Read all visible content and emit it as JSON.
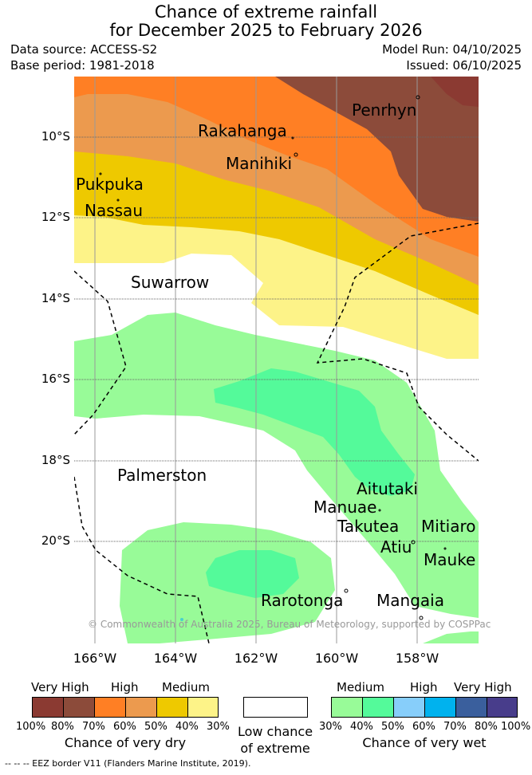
{
  "title_line1": "Chance of extreme rainfall",
  "title_line2": "for December 2025 to February 2026",
  "data_source": "Data source: ACCESS-S2",
  "base_period": "Base period: 1981-2018",
  "model_run": "Model Run: 04/10/2025",
  "issued": "Issued: 06/10/2025",
  "map": {
    "latitude_labels": [
      "10°S",
      "12°S",
      "14°S",
      "16°S",
      "18°S",
      "20°S"
    ],
    "longitude_labels": [
      "166°W",
      "164°W",
      "162°W",
      "160°W",
      "158°W"
    ],
    "places": [
      "Penrhyn",
      "Rakahanga",
      "Manihiki",
      "Pukpuka",
      "Nassau",
      "Suwarrow",
      "Palmerston",
      "Aitutaki",
      "Manuae",
      "Takutea",
      "Mitiaro",
      "Atiu",
      "Mauke",
      "Rarotonga",
      "Mangaia"
    ],
    "copyright": "© Commonwealth of Australia 2025, Bureau of Meteorology, supported by COSPPac"
  },
  "legend": {
    "dry": {
      "categories": [
        "Very High",
        "High",
        "Medium"
      ],
      "ticks": [
        "100%",
        "80%",
        "70%",
        "60%",
        "50%",
        "40%",
        "30%"
      ],
      "colors": [
        "#8b3a32",
        "#8c4b3a",
        "#ff7f24",
        "#ec9a4e",
        "#eec900",
        "#fdf388"
      ],
      "caption": "Chance of very dry"
    },
    "low": {
      "caption_line1": "Low chance",
      "caption_line2": "of extreme",
      "color": "#ffffff"
    },
    "wet": {
      "categories": [
        "Medium",
        "High",
        "Very High"
      ],
      "ticks": [
        "30%",
        "40%",
        "50%",
        "60%",
        "70%",
        "80%",
        "100%"
      ],
      "colors": [
        "#98fb98",
        "#54fa9a",
        "#87cefa",
        "#00b2ee",
        "#3a5f9d",
        "#483d8b"
      ],
      "caption": "Chance of very wet"
    },
    "eez_note": "--  --  -- EEZ border V11 (Flanders Marine Institute, 2019)."
  }
}
